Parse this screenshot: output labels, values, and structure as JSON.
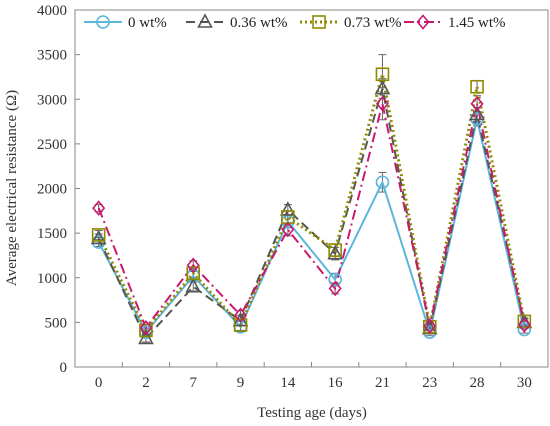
{
  "chart_data": {
    "type": "line",
    "title": "",
    "xlabel": "Testing age (days)",
    "ylabel": "Average electrical resistance  (Ω)",
    "categories": [
      "0",
      "2",
      "7",
      "9",
      "14",
      "16",
      "21",
      "23",
      "28",
      "30"
    ],
    "ylim": [
      0,
      4000
    ],
    "yticks": [
      0,
      500,
      1000,
      1500,
      2000,
      2500,
      3000,
      3500,
      4000
    ],
    "grid": false,
    "legend_position": "top",
    "series": [
      {
        "name": "0 wt%",
        "color": "#5bb6dc",
        "dash": "solid",
        "marker": "circle",
        "values": [
          1400,
          390,
          1020,
          450,
          1630,
          980,
          2070,
          390,
          2780,
          420
        ],
        "errors": [
          50,
          40,
          50,
          60,
          70,
          70,
          110,
          40,
          80,
          40
        ]
      },
      {
        "name": "0.36 wt%",
        "color": "#555555",
        "dash": "dashed",
        "marker": "triangle",
        "values": [
          1440,
          320,
          900,
          520,
          1760,
          1270,
          3120,
          430,
          2830,
          500
        ],
        "errors": [
          50,
          40,
          50,
          60,
          60,
          70,
          110,
          40,
          80,
          40
        ]
      },
      {
        "name": "0.73 wt%",
        "color": "#8e8a00",
        "dash": "dotted",
        "marker": "square",
        "values": [
          1480,
          410,
          1050,
          470,
          1680,
          1310,
          3280,
          450,
          3140,
          510
        ],
        "errors": [
          50,
          40,
          50,
          60,
          70,
          70,
          220,
          40,
          70,
          40
        ]
      },
      {
        "name": "1.45 wt%",
        "color": "#c8196f",
        "dash": "dashdot",
        "marker": "diamond",
        "values": [
          1780,
          440,
          1140,
          580,
          1540,
          880,
          2950,
          460,
          2950,
          470
        ],
        "errors": [
          40,
          40,
          50,
          50,
          70,
          60,
          180,
          40,
          90,
          40
        ]
      }
    ]
  }
}
